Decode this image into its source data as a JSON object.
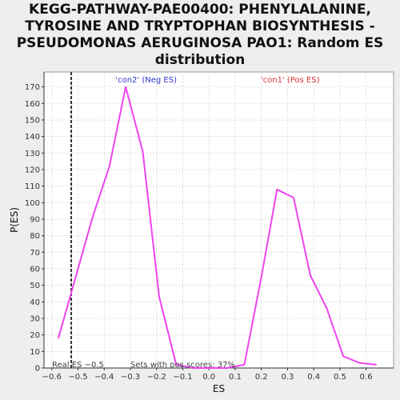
{
  "chart_data": {
    "type": "line",
    "title_lines": [
      "KEGG-PATHWAY-PAE00400: PHENYLALANINE,",
      "TYROSINE AND TRYPTOPHAN BIOSYNTHESIS -",
      "PSEUDOMONAS AERUGINOSA PAO1: Random ES",
      "distribution"
    ],
    "xlabel": "ES",
    "ylabel": "P(ES)",
    "xlim": [
      -0.63,
      0.705
    ],
    "ylim": [
      0,
      179
    ],
    "xticks": [
      -0.6,
      -0.5,
      -0.4,
      -0.3,
      -0.2,
      -0.1,
      0.0,
      0.1,
      0.2,
      0.3,
      0.4,
      0.5,
      0.6
    ],
    "xtick_labels": [
      "−0.6",
      "−0.5",
      "−0.4",
      "−0.3",
      "−0.2",
      "−0.1",
      "0.0",
      "0.1",
      "0.2",
      "0.3",
      "0.4",
      "0.5",
      "0.6"
    ],
    "yticks": [
      0,
      10,
      20,
      30,
      40,
      50,
      60,
      70,
      80,
      90,
      100,
      110,
      120,
      130,
      140,
      150,
      160,
      170
    ],
    "grid": true,
    "series": [
      {
        "color": "#ee44ee",
        "x": [
          -0.575,
          -0.445,
          -0.38,
          -0.318,
          -0.253,
          -0.19,
          -0.125,
          -0.06,
          0.0,
          0.07,
          0.135,
          0.2,
          0.26,
          0.323,
          0.387,
          0.45,
          0.513,
          0.577,
          0.64
        ],
        "y": [
          18,
          91,
          122,
          170,
          131,
          43,
          2,
          0,
          0,
          0,
          2,
          55,
          108,
          103,
          56,
          36,
          7,
          3,
          2
        ]
      }
    ],
    "real_es": {
      "x": -0.526,
      "label": "Real ES −0.5"
    },
    "annotations": {
      "neg_label": "'con2' (Neg ES)",
      "pos_label": "'con1' (Pos ES)",
      "pos_scores": "Sets with pos scores: 37%"
    },
    "colors": {
      "neg": "#3333cc",
      "pos": "#dd3333",
      "grid": "#dddddd",
      "plot_bg": "#ffffff"
    }
  }
}
